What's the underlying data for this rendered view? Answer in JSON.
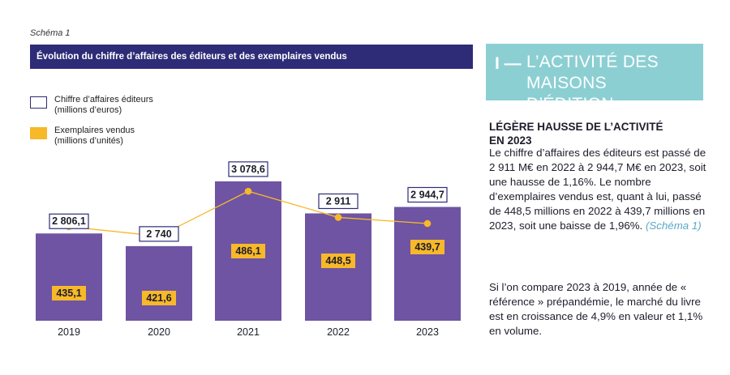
{
  "schema_label": "Schéma 1",
  "chart_title": "Évolution du chiffre d’affaires des  éditeurs et des exemplaires vendus",
  "legend": [
    {
      "line1": "Chiffre d’affaires éditeurs",
      "line2": "(millions d’euros)"
    },
    {
      "line1": "Exemplaires vendus",
      "line2": "(millions d’unités)"
    }
  ],
  "colors": {
    "bar": "#6e54a3",
    "title_bar": "#2e2c77",
    "accent_yellow": "#f7b829",
    "panel": "#8ccfd3",
    "link": "#5aa8c8"
  },
  "chart_data": {
    "type": "bar",
    "title": "Évolution du chiffre d’affaires des  éditeurs et des exemplaires vendus",
    "categories": [
      "2019",
      "2020",
      "2021",
      "2022",
      "2023"
    ],
    "series": [
      {
        "name": "Chiffre d’affaires éditeurs (millions d’euros)",
        "kind": "bar",
        "values": [
          2806.1,
          2740,
          3078.6,
          2911,
          2944.7
        ],
        "labels": [
          "2 806,1",
          "2 740",
          "3 078,6",
          "2 911",
          "2 944,7"
        ]
      },
      {
        "name": "Exemplaires vendus (millions d’unités)",
        "kind": "line",
        "values": [
          435.1,
          421.6,
          486.1,
          448.5,
          439.7
        ],
        "labels": [
          "435,1",
          "421,6",
          "486,1",
          "448,5",
          "439,7"
        ]
      }
    ],
    "xlabel": "",
    "ylabel": "",
    "bar_ylim": [
      2350,
      3150
    ],
    "line_ylim": [
      300,
      520
    ],
    "grid": false
  },
  "panel": {
    "bar_mark": "I —",
    "title_line1": "L’ACTIVITÉ DES",
    "title_line2": "MAISONS D’ÉDITION"
  },
  "section": {
    "heading_line1": "LÉGÈRE HAUSSE DE L’ACTIVITÉ",
    "heading_line2": "EN 2023",
    "para1": "Le chiffre d’affaires des éditeurs est passé de 2 911 M€ en 2022 à 2 944,7 M€ en 2023, soit une hausse de 1,16%. Le nombre d’exemplaires vendus est, quant à lui, passé de 448,5 millions en 2022 à 439,7 millions en 2023, soit une baisse de 1,96%.",
    "para1_ref": "(Schéma 1)",
    "para2": "Si l’on compare 2023 à 2019, année de « référence » prépandémie, le marché du livre est en croissance de 4,9% en valeur et 1,1% en volume."
  }
}
